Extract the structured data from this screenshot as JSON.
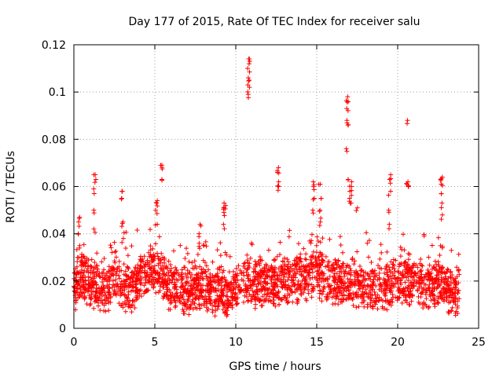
{
  "chart_data": {
    "type": "scatter",
    "title": "Day 177 of 2015, Rate Of TEC Index for receiver salu",
    "xlabel": "GPS time / hours",
    "ylabel": "ROTI / TECUs",
    "xlim": [
      0,
      25
    ],
    "ylim": [
      0,
      0.12
    ],
    "xticks": [
      0,
      5,
      10,
      15,
      20,
      25
    ],
    "xtick_labels": [
      "0",
      "5",
      "10",
      "15",
      "20",
      "25"
    ],
    "yticks": [
      0,
      0.02,
      0.04,
      0.06,
      0.08,
      0.1,
      0.12
    ],
    "ytick_labels": [
      "0",
      "0.02",
      "0.04",
      "0.06",
      "0.08",
      "0.1",
      "0.12"
    ],
    "grid": true,
    "marker": "+",
    "color": "#ff0000",
    "series": [
      {
        "name": "ROTI",
        "base_profile": {
          "x": [
            0,
            0.5,
            1,
            1.5,
            2,
            2.5,
            3,
            3.5,
            4,
            4.5,
            5,
            5.5,
            6,
            6.5,
            7,
            7.5,
            8,
            8.5,
            9,
            9.5,
            10,
            10.5,
            11,
            11.5,
            12,
            12.5,
            13,
            13.5,
            14,
            14.5,
            15,
            15.5,
            16,
            16.5,
            17,
            17.5,
            18,
            18.5,
            19,
            19.5,
            20,
            20.5,
            21,
            21.5,
            22,
            22.5,
            23,
            23.5,
            23.8
          ],
          "y": [
            0.016,
            0.022,
            0.02,
            0.016,
            0.015,
            0.022,
            0.018,
            0.016,
            0.02,
            0.024,
            0.026,
            0.022,
            0.017,
            0.016,
            0.015,
            0.017,
            0.018,
            0.015,
            0.016,
            0.015,
            0.017,
            0.02,
            0.019,
            0.019,
            0.018,
            0.02,
            0.02,
            0.02,
            0.022,
            0.022,
            0.024,
            0.021,
            0.02,
            0.019,
            0.02,
            0.018,
            0.017,
            0.017,
            0.016,
            0.018,
            0.02,
            0.019,
            0.019,
            0.018,
            0.019,
            0.02,
            0.017,
            0.015,
            0.016
          ]
        },
        "bursts": [
          {
            "x": 0.3,
            "y": [
              0.03,
              0.035,
              0.04,
              0.045,
              0.047
            ]
          },
          {
            "x": 1.3,
            "y": [
              0.042,
              0.05,
              0.059,
              0.063,
              0.065
            ]
          },
          {
            "x": 3.0,
            "y": [
              0.038,
              0.045,
              0.055,
              0.058
            ]
          },
          {
            "x": 5.1,
            "y": [
              0.044,
              0.05,
              0.053,
              0.054
            ]
          },
          {
            "x": 5.4,
            "y": [
              0.063,
              0.069,
              0.069
            ]
          },
          {
            "x": 7.8,
            "y": [
              0.036,
              0.04,
              0.044
            ]
          },
          {
            "x": 9.3,
            "y": [
              0.044,
              0.049,
              0.051,
              0.052,
              0.053
            ]
          },
          {
            "x": 10.8,
            "y": [
              0.099,
              0.102,
              0.105,
              0.106,
              0.11,
              0.113,
              0.114
            ]
          },
          {
            "x": 12.6,
            "y": [
              0.06,
              0.062,
              0.066,
              0.068
            ]
          },
          {
            "x": 14.8,
            "y": [
              0.05,
              0.055,
              0.06,
              0.062
            ]
          },
          {
            "x": 15.2,
            "y": [
              0.045,
              0.05,
              0.055,
              0.061
            ]
          },
          {
            "x": 16.9,
            "y": [
              0.063,
              0.076,
              0.087,
              0.088,
              0.093,
              0.096,
              0.098
            ]
          },
          {
            "x": 17.1,
            "y": [
              0.053,
              0.055,
              0.058,
              0.06,
              0.062
            ]
          },
          {
            "x": 17.5,
            "y": [
              0.051
            ]
          },
          {
            "x": 19.5,
            "y": [
              0.044,
              0.05,
              0.058,
              0.063,
              0.065
            ]
          },
          {
            "x": 20.6,
            "y": [
              0.06,
              0.061,
              0.062,
              0.088
            ]
          },
          {
            "x": 22.7,
            "y": [
              0.048,
              0.053,
              0.057,
              0.061,
              0.063,
              0.064
            ]
          }
        ]
      }
    ]
  }
}
